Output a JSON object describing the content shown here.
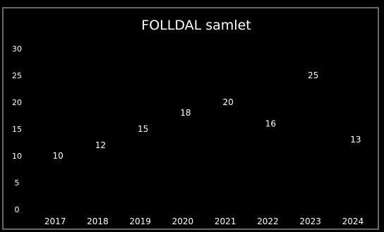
{
  "chart_data": {
    "type": "scatter",
    "title": "FOLLDAL samlet",
    "xlabel": "",
    "ylabel": "",
    "categories": [
      "2017",
      "2018",
      "2019",
      "2020",
      "2021",
      "2022",
      "2023",
      "2024"
    ],
    "values": [
      10,
      12,
      15,
      18,
      20,
      16,
      25,
      13
    ],
    "ylim": [
      0,
      30
    ],
    "yticks": [
      "0",
      "5",
      "10",
      "15",
      "20",
      "25",
      "30"
    ],
    "grid": false,
    "legend": "none",
    "background_color": "#000000",
    "text_color": "#ffffff",
    "data_labels": true,
    "markers": false
  }
}
